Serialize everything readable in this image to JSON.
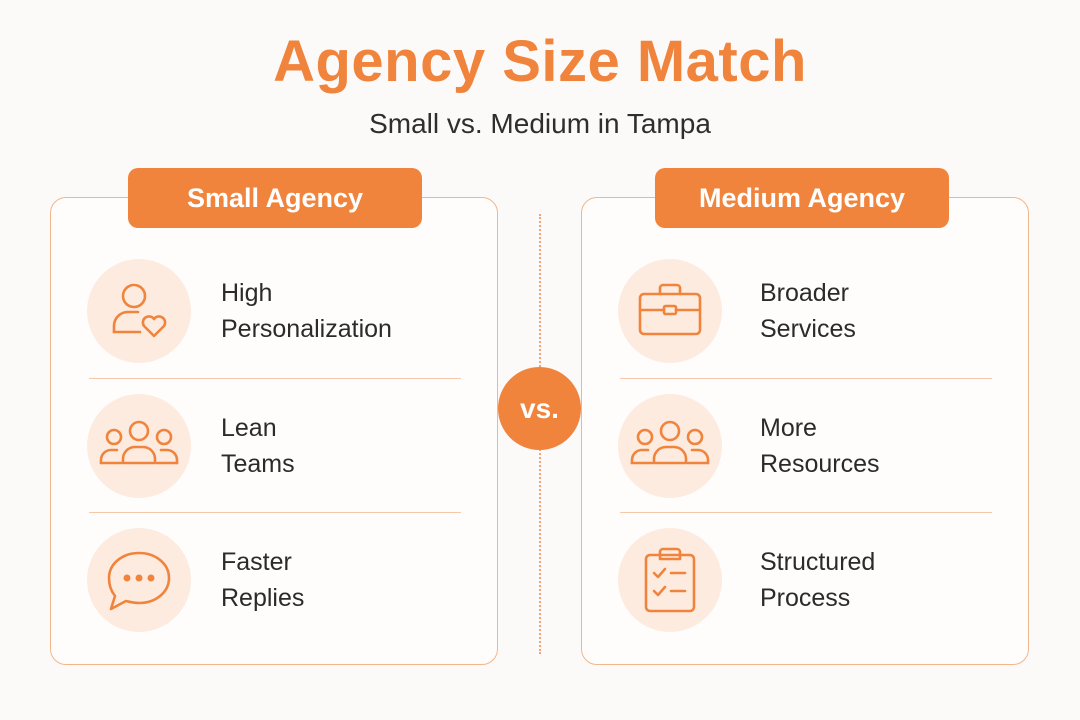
{
  "title": "Agency Size Match",
  "subtitle": "Small vs. Medium in Tampa",
  "vs_label": "vs.",
  "colors": {
    "accent": "#f0843c",
    "icon_bg": "#fdebe0",
    "border": "#f2b68c"
  },
  "left": {
    "heading": "Small Agency",
    "items": [
      {
        "icon": "person-heart-icon",
        "line1": "High",
        "line2": "Personalization"
      },
      {
        "icon": "team-icon",
        "line1": "Lean",
        "line2": "Teams"
      },
      {
        "icon": "chat-bubble-icon",
        "line1": "Faster",
        "line2": "Replies"
      }
    ]
  },
  "right": {
    "heading": "Medium Agency",
    "items": [
      {
        "icon": "briefcase-icon",
        "line1": "Broader",
        "line2": "Services"
      },
      {
        "icon": "team-icon",
        "line1": "More",
        "line2": "Resources"
      },
      {
        "icon": "clipboard-checklist-icon",
        "line1": "Structured",
        "line2": "Process"
      }
    ]
  }
}
